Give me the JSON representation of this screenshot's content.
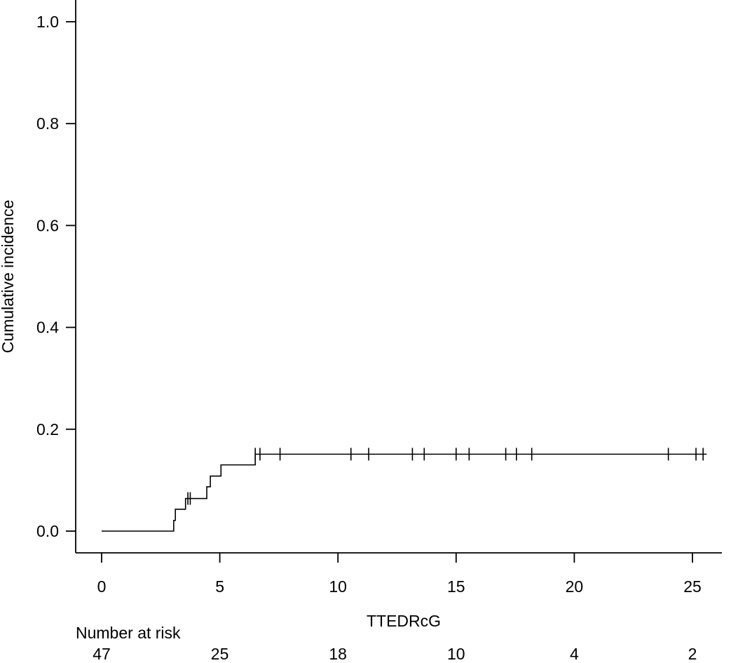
{
  "chart_data": {
    "type": "line",
    "step": true,
    "xlabel": "TTEDRcG",
    "ylabel": "Cumulative incidence",
    "xlim": [
      0,
      25
    ],
    "ylim": [
      0,
      1
    ],
    "x_ticks": [
      "0",
      "5",
      "10",
      "15",
      "20",
      "25"
    ],
    "y_ticks": [
      "0.0",
      "0.2",
      "0.4",
      "0.6",
      "0.8",
      "1.0"
    ],
    "grid": false,
    "series": [
      {
        "steps": [
          [
            0,
            0
          ],
          [
            3.05,
            0.021
          ],
          [
            3.12,
            0.043
          ],
          [
            3.55,
            0.064
          ],
          [
            4.45,
            0.087
          ],
          [
            4.6,
            0.108
          ],
          [
            5.05,
            0.13
          ],
          [
            6.5,
            0.151
          ],
          [
            25.6,
            0.151
          ]
        ],
        "censor_times": [
          3.65,
          3.75,
          6.5,
          6.7,
          7.55,
          10.55,
          11.3,
          13.15,
          13.65,
          15.0,
          15.55,
          17.1,
          17.55,
          18.2,
          23.98,
          25.15,
          25.45
        ],
        "censor_value": 0.151
      }
    ],
    "risk_table": {
      "label": "Number at risk",
      "times": [
        0,
        5,
        10,
        15,
        20,
        25
      ],
      "counts": [
        "47",
        "25",
        "18",
        "10",
        "4",
        "2"
      ]
    }
  }
}
